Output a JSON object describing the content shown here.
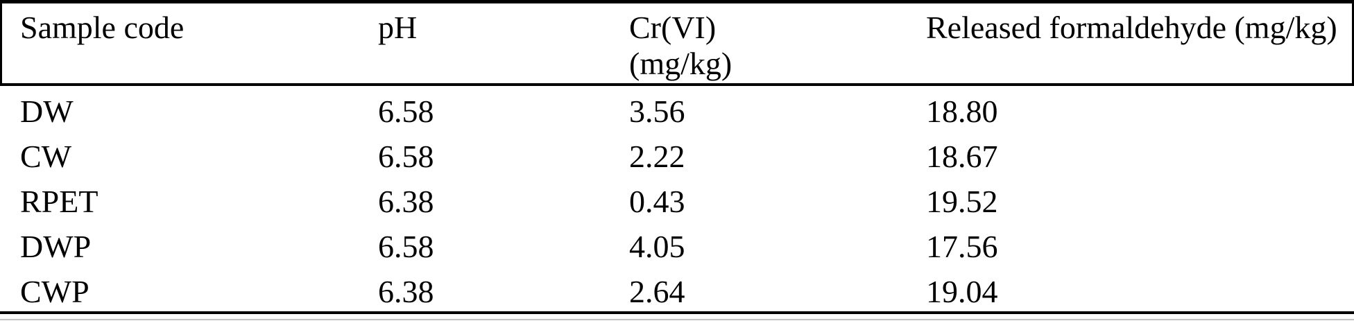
{
  "colors": {
    "background": "#ffffff",
    "text": "#000000",
    "rule": "#000000",
    "bottom_edge_artifact": "#c2c2c2"
  },
  "table": {
    "columns": [
      {
        "line1": "Sample code",
        "line2": ""
      },
      {
        "line1": "pH",
        "line2": ""
      },
      {
        "line1": "Cr(VI)",
        "line2": "(mg/kg)"
      },
      {
        "line1": "Released formaldehyde (mg/kg)",
        "line2": ""
      }
    ],
    "rows": [
      [
        "DW",
        "6.58",
        "3.56",
        "18.80"
      ],
      [
        "CW",
        "6.58",
        "2.22",
        "18.67"
      ],
      [
        "RPET",
        "6.38",
        "0.43",
        "19.52"
      ],
      [
        "DWP",
        "6.58",
        "4.05",
        "17.56"
      ],
      [
        "CWP",
        "6.38",
        "2.64",
        "19.04"
      ]
    ]
  },
  "chart_data": {
    "type": "table",
    "columns": [
      "Sample code",
      "pH",
      "Cr(VI) (mg/kg)",
      "Released formaldehyde (mg/kg)"
    ],
    "rows": [
      [
        "DW",
        "6.58",
        "3.56",
        "18.80"
      ],
      [
        "CW",
        "6.58",
        "2.22",
        "18.67"
      ],
      [
        "RPET",
        "6.38",
        "0.43",
        "19.52"
      ],
      [
        "DWP",
        "6.58",
        "4.05",
        "17.56"
      ],
      [
        "CWP",
        "6.38",
        "2.64",
        "19.04"
      ]
    ]
  }
}
